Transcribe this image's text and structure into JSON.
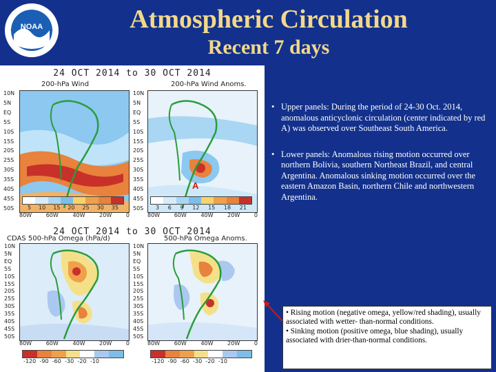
{
  "header": {
    "title": "Atmospheric Circulation",
    "subtitle": "Recent 7 days",
    "logo_text": "NOAA"
  },
  "figure": {
    "upper_title": "24 OCT 2014 to 30 OCT 2014",
    "lower_title": "24 OCT 2014 to 30 OCT 2014",
    "panels": {
      "upper_left_label": "200-hPa Wind",
      "upper_right_label": "200-hPa Wind Anoms.",
      "lower_left_label": "CDAS 500-hPa Omega (hPa/d)",
      "lower_right_label": "500-hPa Omega Anoms."
    },
    "y_ticks": [
      "10N",
      "5N",
      "EQ",
      "5S",
      "10S",
      "15S",
      "20S",
      "25S",
      "30S",
      "35S",
      "40S",
      "45S",
      "50S"
    ],
    "x_ticks": [
      "80W",
      "60W",
      "40W",
      "20W",
      "0"
    ],
    "upper_left_colorbar": [
      "5",
      "10",
      "15",
      "20",
      "25",
      "30",
      "35"
    ],
    "upper_right_colorbar": [
      "3",
      "6",
      "9",
      "12",
      "15",
      "18",
      "21"
    ],
    "lower_colorbar": [
      "-120",
      "-90",
      "-60",
      "-30",
      "-20",
      "-10"
    ],
    "anticyclone_marker": "A",
    "colors": {
      "wind_blue": "#8cc8f0",
      "wind_orange": "#e8823c",
      "wind_red": "#c8302a",
      "omega_yellow": "#f5e08a",
      "omega_blue": "#aac8f0",
      "continent_outline": "#2a9c3a"
    }
  },
  "bullets": [
    "Upper panels:  During the period of 24-30 Oct. 2014, anomalous anticyclonic circulation (center indicated by red A) was observed over Southeast South America.",
    "Lower panels: Anomalous rising motion occurred over northern Bolivia, southern Northeast Brazil, and central Argentina. Anomalous sinking motion occurred over the eastern Amazon Basin, northern Chile and northwestern Argentina."
  ],
  "note": {
    "line1": "• Rising motion (negative omega, yellow/red shading), usually associated with wetter- than-normal conditions.",
    "line2": "• Sinking motion (positive omega, blue shading), usually associated with drier-than-normal conditions."
  }
}
